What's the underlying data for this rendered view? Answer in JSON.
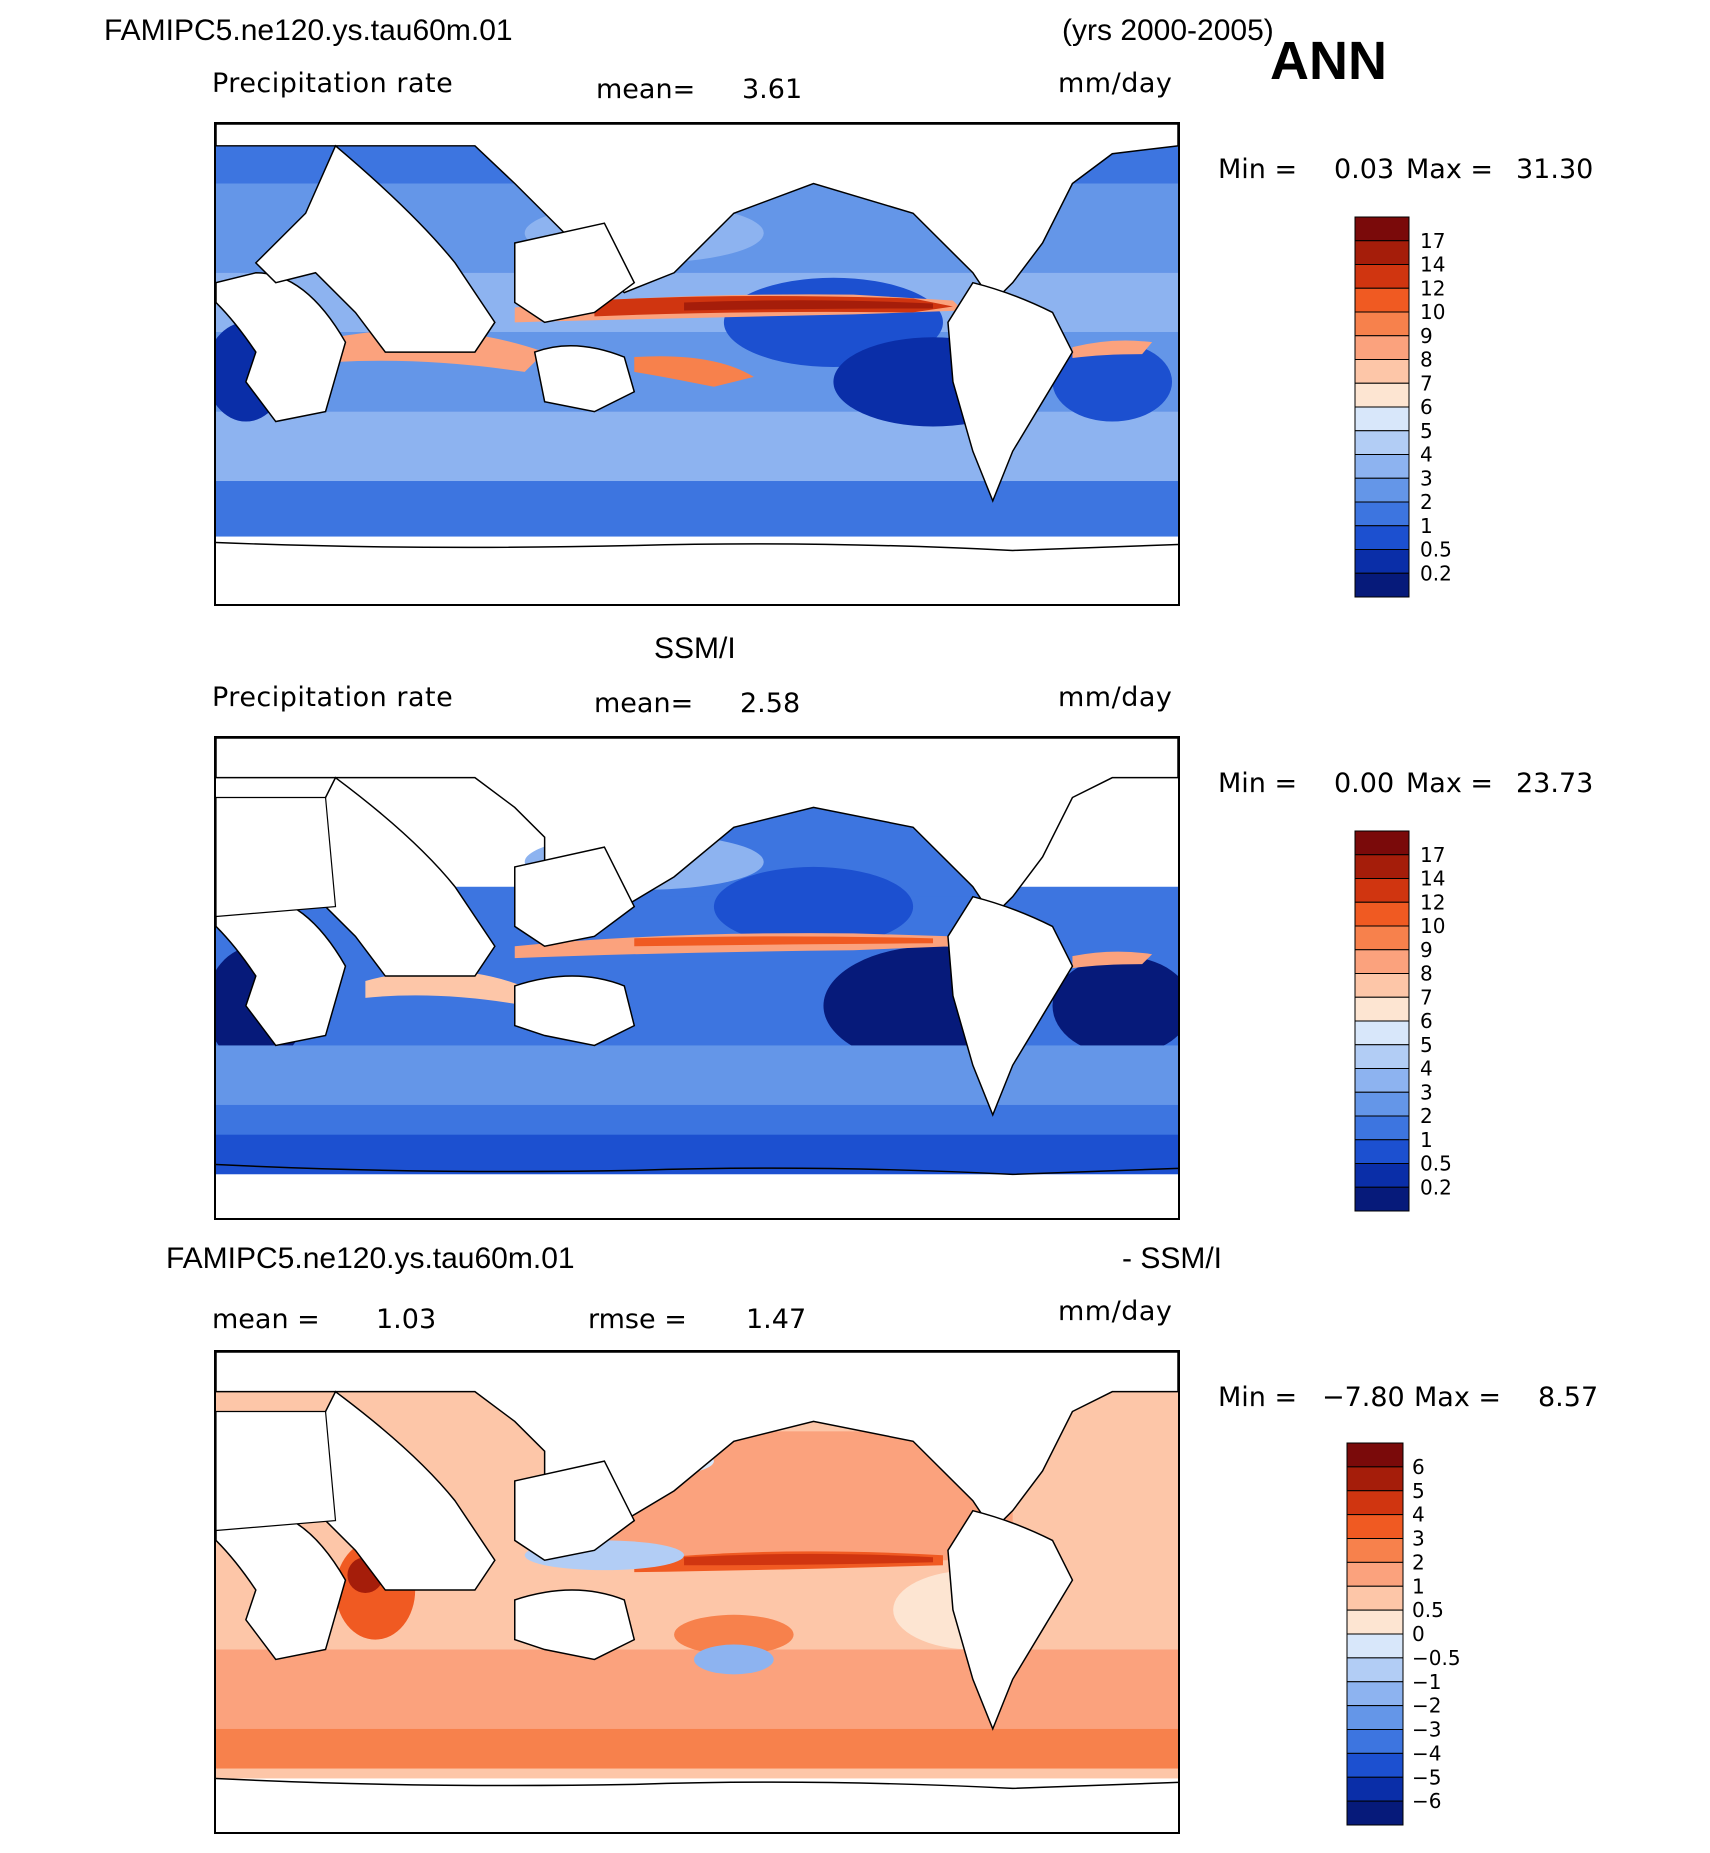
{
  "header": {
    "case_name": "FAMIPC5.ne120.ys.tau60m.01",
    "years": "(yrs 2000-2005)",
    "season": "ANN"
  },
  "panels": [
    {
      "id": "model",
      "title": "",
      "variable": "Precipitation rate",
      "mean_label": "mean=",
      "mean_value": "3.61",
      "units": "mm/day",
      "min_label": "Min =",
      "min_value": "0.03",
      "max_label": "Max =",
      "max_value": "31.30"
    },
    {
      "id": "obs",
      "title": "SSM/I",
      "variable": "Precipitation rate",
      "mean_label": "mean=",
      "mean_value": "2.58",
      "units": "mm/day",
      "min_label": "Min =",
      "min_value": "0.00",
      "max_label": "Max =",
      "max_value": "23.73"
    },
    {
      "id": "diff",
      "title_left": "FAMIPC5.ne120.ys.tau60m.01",
      "title_right": "- SSM/I",
      "mean_label": "mean =",
      "mean_value": "1.03",
      "rmse_label": "rmse =",
      "rmse_value": "1.47",
      "units": "mm/day",
      "min_label": "Min =",
      "min_value": "−7.80",
      "max_label": "Max =",
      "max_value": "8.57"
    }
  ],
  "chart_data": {
    "type": "heatmap",
    "colorbars": {
      "precip": {
        "levels": [
          "17",
          "14",
          "12",
          "10",
          "9",
          "8",
          "7",
          "6",
          "5",
          "4",
          "3",
          "2",
          "1",
          "0.5",
          "0.2"
        ],
        "colors": [
          "#7a0a0a",
          "#a51d0a",
          "#d03510",
          "#f05a22",
          "#f7814c",
          "#fba27d",
          "#fdc6a8",
          "#fde5d2",
          "#d8e7fa",
          "#b2cdf5",
          "#8db3f0",
          "#6496e8",
          "#3d75e0",
          "#1c50d0",
          "#0a2ea8",
          "#061a7a"
        ]
      },
      "diff": {
        "levels": [
          "6",
          "5",
          "4",
          "3",
          "2",
          "1",
          "0.5",
          "0",
          "−0.5",
          "−1",
          "−2",
          "−3",
          "−4",
          "−5",
          "−6"
        ],
        "colors": [
          "#7a0a0a",
          "#a51d0a",
          "#d03510",
          "#f05a22",
          "#f7814c",
          "#fba27d",
          "#fdc6a8",
          "#fde5d2",
          "#d8e7fa",
          "#b2cdf5",
          "#8db3f0",
          "#6496e8",
          "#3d75e0",
          "#1c50d0",
          "#0a2ea8",
          "#061a7a"
        ]
      }
    },
    "projection": "cylindrical equidistant, 0-360 longitude, centered on Pacific"
  }
}
